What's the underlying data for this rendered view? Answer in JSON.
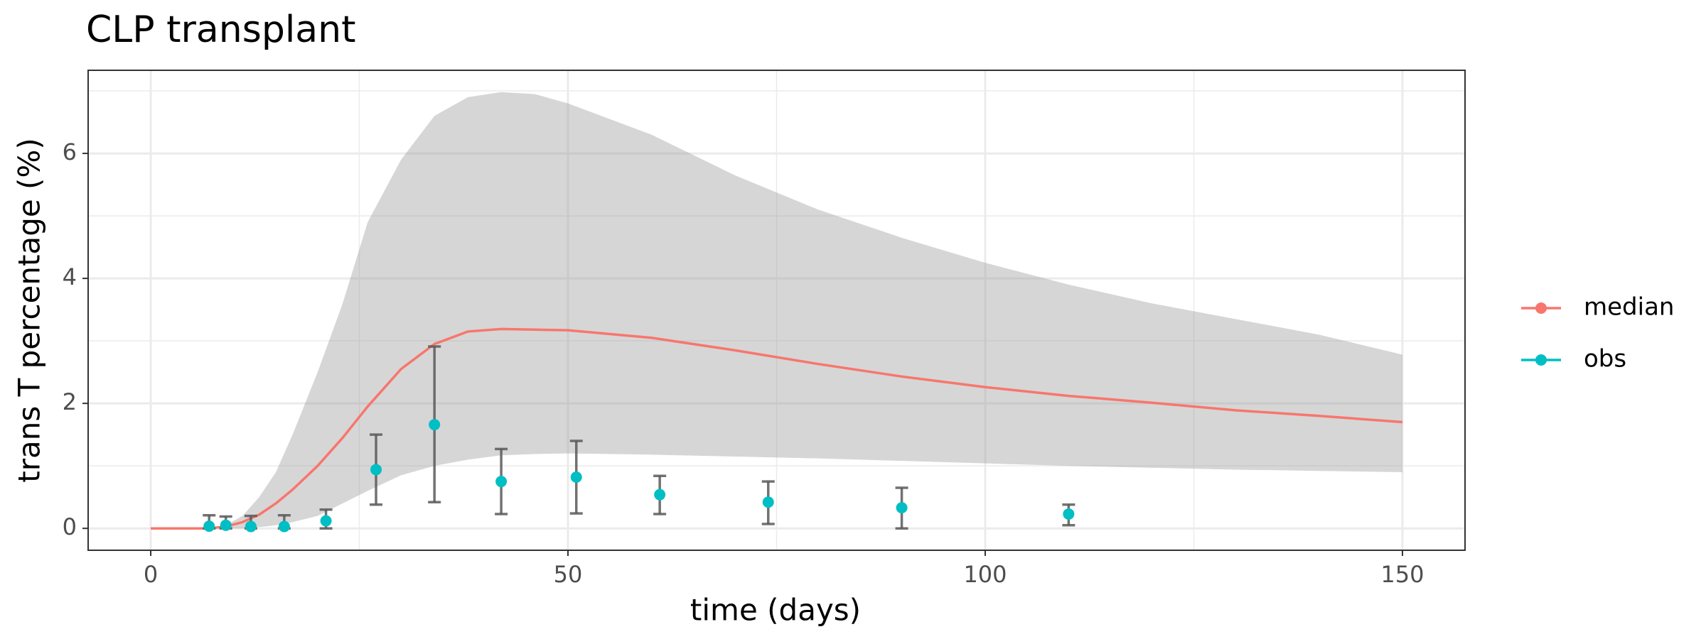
{
  "chart_data": {
    "type": "line",
    "title": "CLP transplant",
    "x_label": "time (days)",
    "y_label": "trans T percentage (%)",
    "xlim": [
      -7.5,
      157.5
    ],
    "ylim": [
      -0.35,
      7.33
    ],
    "xticks": [
      0,
      50,
      100,
      150
    ],
    "yticks": [
      0,
      2,
      4,
      6
    ],
    "minor_xticks": [
      25,
      75,
      125
    ],
    "minor_yticks": [
      1,
      3,
      5,
      7
    ],
    "grid": true,
    "legend": "right",
    "x": [
      0,
      5,
      7,
      9,
      11,
      13,
      15,
      17,
      20,
      23,
      26,
      30,
      34,
      38,
      42,
      46,
      50,
      60,
      70,
      80,
      90,
      100,
      110,
      120,
      130,
      140,
      150
    ],
    "ribbon": {
      "color": "#999999",
      "alpha": 0.4,
      "lower": [
        0,
        0,
        0,
        0,
        0,
        0.02,
        0.05,
        0.1,
        0.2,
        0.4,
        0.6,
        0.85,
        1.0,
        1.1,
        1.17,
        1.19,
        1.2,
        1.18,
        1.15,
        1.12,
        1.08,
        1.04,
        1.0,
        0.97,
        0.94,
        0.92,
        0.9
      ],
      "upper": [
        0,
        0,
        0,
        0.05,
        0.2,
        0.5,
        0.9,
        1.5,
        2.5,
        3.6,
        4.9,
        5.9,
        6.6,
        6.9,
        6.98,
        6.95,
        6.8,
        6.3,
        5.65,
        5.1,
        4.65,
        4.25,
        3.9,
        3.6,
        3.35,
        3.1,
        2.78
      ]
    },
    "series": [
      {
        "name": "median",
        "color": "#F8766D",
        "values": [
          0,
          0,
          0,
          0.03,
          0.1,
          0.22,
          0.4,
          0.62,
          1.0,
          1.45,
          1.95,
          2.55,
          2.95,
          3.15,
          3.19,
          3.18,
          3.17,
          3.05,
          2.85,
          2.63,
          2.43,
          2.26,
          2.12,
          2.01,
          1.89,
          1.8,
          1.7
        ]
      },
      {
        "name": "obs",
        "color": "#00BFC4",
        "error_color": "#595959",
        "x": [
          7,
          9,
          12,
          16,
          21,
          27,
          34,
          42,
          51,
          61,
          74,
          90,
          110
        ],
        "values": [
          0.035,
          0.05,
          0.03,
          0.03,
          0.12,
          0.94,
          1.66,
          0.75,
          0.82,
          0.54,
          0.42,
          0.33,
          0.23
        ],
        "lower": [
          0,
          0,
          0,
          0,
          0,
          0.38,
          0.42,
          0.23,
          0.24,
          0.23,
          0.07,
          0,
          0.05
        ],
        "upper": [
          0.21,
          0.19,
          0.2,
          0.21,
          0.3,
          1.5,
          2.91,
          1.27,
          1.4,
          0.84,
          0.75,
          0.65,
          0.38
        ]
      }
    ]
  }
}
